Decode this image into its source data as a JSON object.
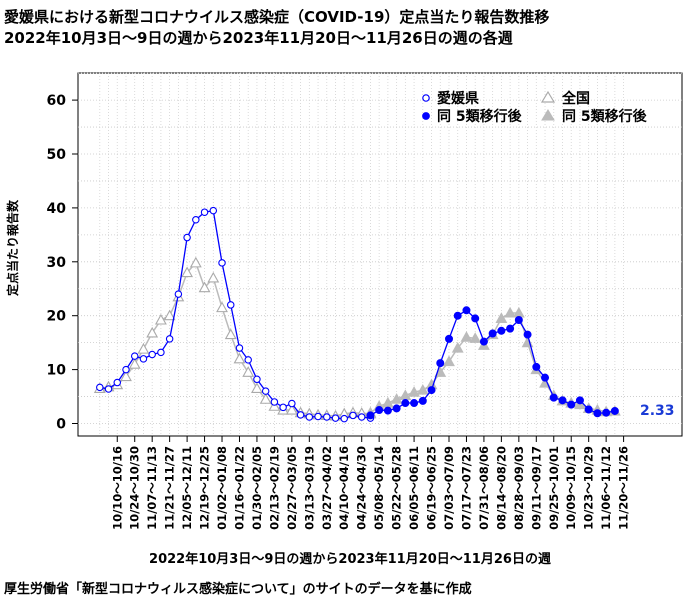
{
  "chart_data": {
    "type": "line",
    "title": "愛媛県における新型コロナウイルス感染症（COVID-19）定点当たり報告数推移",
    "subtitle": "2022年10月3日～9日の週から2023年11月20日～11月26日の週の各週",
    "xlabel": "2022年10月3日～9日の週から2023年11月20日～11月26日の週",
    "ylabel": "定点当たり報告数",
    "source": "厚生労働省「新型コロナウィルス感染症について」のサイトのデータを基に作成",
    "ylim": [
      0,
      65
    ],
    "yticks": [
      "0",
      "10",
      "20",
      "30",
      "40",
      "50",
      "60"
    ],
    "grid": true,
    "legend_position": "top-right",
    "last_value_label": "2.33",
    "tick_labels": [
      "10/10～10/16",
      "10/24～10/30",
      "11/07～11/13",
      "11/21～11/27",
      "12/05～12/11",
      "12/19～12/25",
      "01/02～01/08",
      "01/16～01/22",
      "01/30～02/05",
      "02/13～02/19",
      "02/27～03/05",
      "03/13～03/19",
      "03/27～04/02",
      "04/10～04/16",
      "04/24～04/30",
      "05/08～05/14",
      "05/22～05/28",
      "06/05～06/11",
      "06/19～06/25",
      "07/03～07/09",
      "07/17～07/23",
      "07/31～08/06",
      "08/14～08/20",
      "08/28～09/03",
      "09/11～09/17",
      "09/25～10/01",
      "10/09～10/15",
      "10/23～10/29",
      "11/06～11/12",
      "11/20～11/26"
    ],
    "series": [
      {
        "name": "愛媛県",
        "color": "#0000ff",
        "marker": "open-circle",
        "values": [
          6.7,
          6.4,
          7.6,
          10.0,
          12.5,
          12.0,
          12.8,
          13.2,
          15.7,
          24.0,
          34.5,
          37.8,
          39.2,
          39.5,
          29.8,
          22.0,
          14.0,
          11.8,
          8.2,
          6.0,
          4.0,
          3.0,
          3.7,
          1.6,
          1.2,
          1.3,
          1.2,
          1.0,
          0.9,
          1.5,
          1.2,
          1.0
        ]
      },
      {
        "name": "全国",
        "color": "#bbbbbb",
        "marker": "open-triangle",
        "values": [
          6.5,
          6.8,
          7.2,
          8.7,
          11.0,
          13.8,
          16.8,
          19.2,
          20.0,
          23.5,
          28.0,
          29.8,
          25.2,
          27.0,
          21.5,
          16.5,
          12.0,
          9.5,
          6.5,
          4.5,
          3.2,
          2.5,
          2.5,
          2.0,
          1.8,
          1.6,
          1.5,
          1.4,
          1.8,
          2.0,
          1.9,
          1.8
        ]
      },
      {
        "name": "同 5類移行後",
        "color": "#0000ff",
        "marker": "filled-circle",
        "values": [
          1.5,
          2.5,
          2.4,
          2.8,
          3.8,
          3.8,
          4.2,
          6.2,
          11.2,
          15.7,
          20.0,
          21.0,
          19.5,
          15.2,
          16.7,
          17.2,
          17.6,
          19.2,
          16.5,
          10.5,
          8.5,
          4.8,
          4.3,
          3.5,
          4.3,
          2.6,
          1.9,
          2.0,
          2.33
        ]
      },
      {
        "name": "同 5類移行後",
        "color": "#bbbbbb",
        "marker": "filled-triangle",
        "values": [
          2.0,
          3.2,
          3.8,
          4.5,
          5.2,
          5.8,
          6.2,
          7.2,
          9.5,
          11.5,
          14.0,
          16.0,
          15.8,
          14.5,
          16.5,
          19.5,
          20.5,
          20.5,
          15.0,
          10.0,
          7.5,
          5.2,
          4.2,
          3.8,
          3.5,
          2.8,
          2.5,
          2.2,
          2.3
        ]
      }
    ]
  }
}
